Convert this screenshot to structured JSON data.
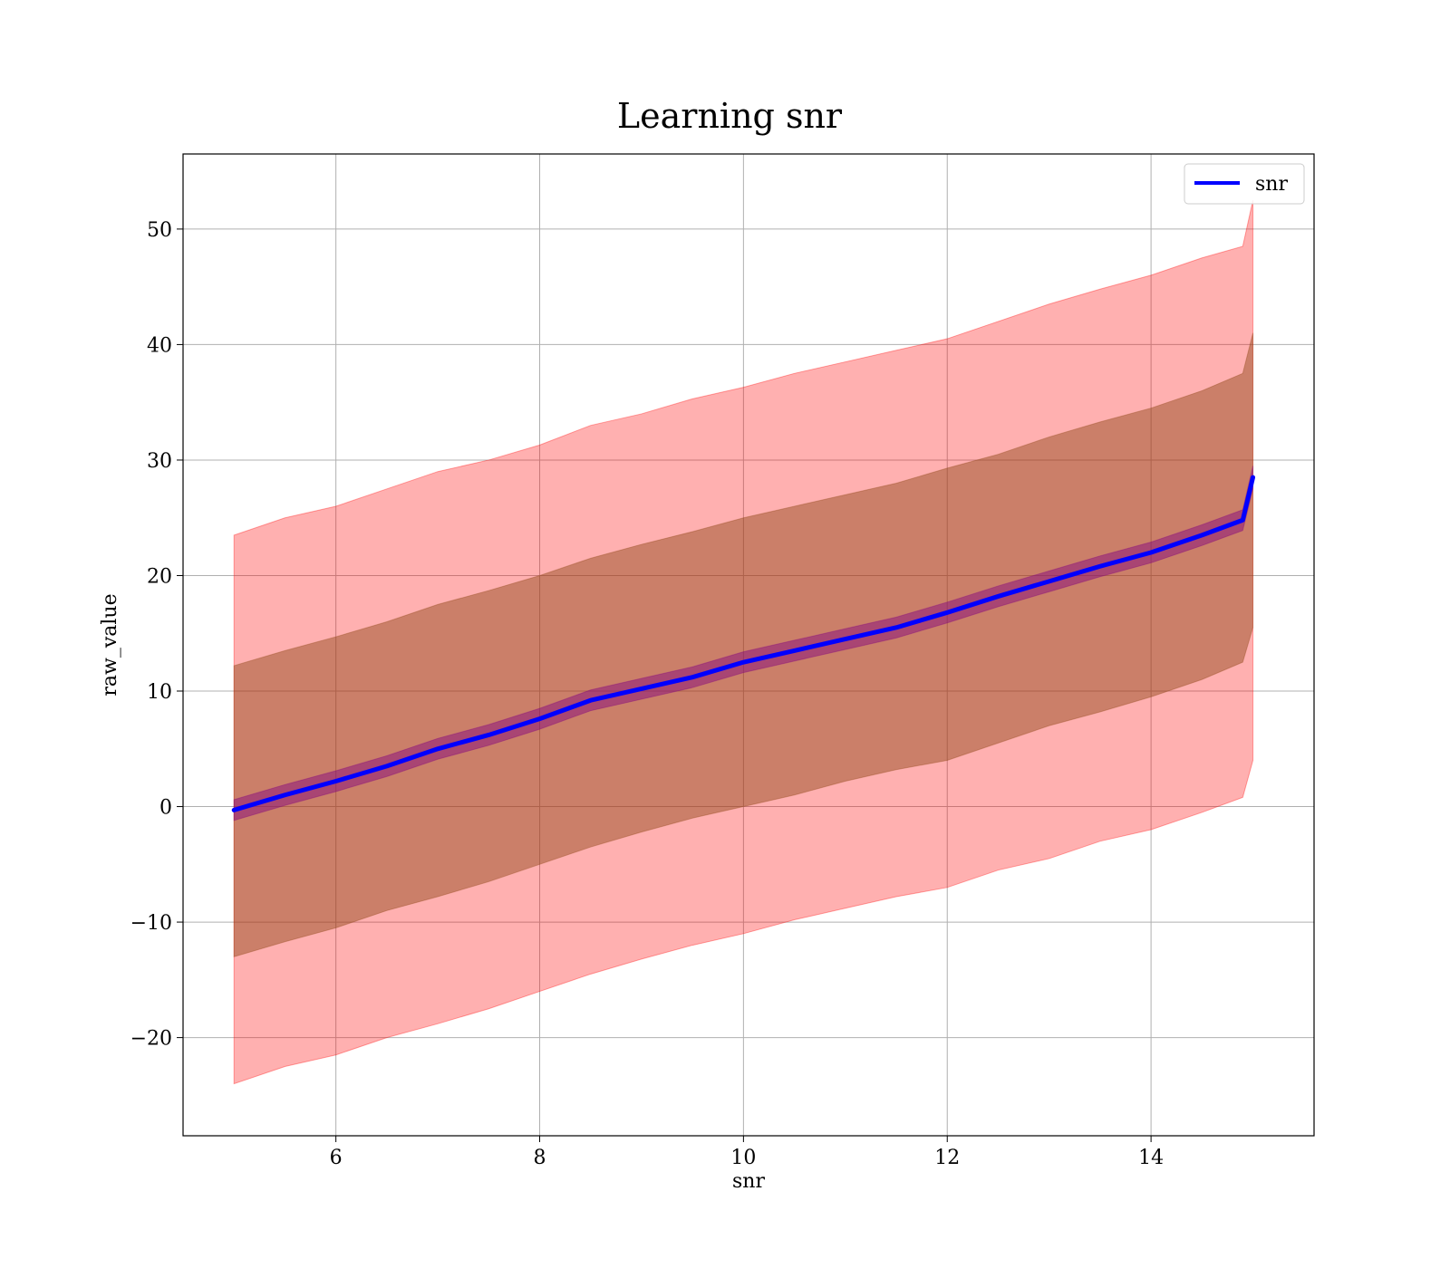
{
  "chart_data": {
    "type": "line",
    "title": "Learning snr",
    "xlabel": "snr",
    "ylabel": "raw_value",
    "xlim": [
      4.5,
      15.6
    ],
    "ylim": [
      -28.5,
      56.5
    ],
    "xticks": [
      6,
      8,
      10,
      12,
      14
    ],
    "yticks": [
      -20,
      -10,
      0,
      10,
      20,
      30,
      40,
      50
    ],
    "grid": true,
    "legend": {
      "position": "top-right",
      "entries": [
        "snr"
      ]
    },
    "colors": {
      "line": "#0000ff",
      "outer_band": "#ff0000",
      "inner_band": "#8b4513",
      "mean_band": "#800080",
      "grid": "#b0b0b0"
    },
    "series": [
      {
        "name": "snr",
        "x": [
          5.0,
          5.5,
          6.0,
          6.5,
          7.0,
          7.5,
          8.0,
          8.5,
          9.0,
          9.5,
          10.0,
          10.5,
          11.0,
          11.5,
          12.0,
          12.5,
          13.0,
          13.5,
          14.0,
          14.5,
          14.9,
          15.0
        ],
        "y": [
          -0.3,
          1.0,
          2.2,
          3.5,
          5.0,
          6.2,
          7.6,
          9.2,
          10.2,
          11.2,
          12.5,
          13.5,
          14.5,
          15.5,
          16.8,
          18.2,
          19.5,
          20.8,
          22.0,
          23.5,
          24.8,
          28.5
        ]
      }
    ],
    "bands": [
      {
        "level": "outer",
        "x": [
          5.0,
          5.5,
          6.0,
          6.5,
          7.0,
          7.5,
          8.0,
          8.5,
          9.0,
          9.5,
          10.0,
          10.5,
          11.0,
          11.5,
          12.0,
          12.5,
          13.0,
          13.5,
          14.0,
          14.5,
          14.9,
          15.0
        ],
        "upper": [
          23.5,
          25.0,
          26.0,
          27.5,
          29.0,
          30.0,
          31.3,
          33.0,
          34.0,
          35.3,
          36.3,
          37.5,
          38.5,
          39.5,
          40.5,
          42.0,
          43.5,
          44.8,
          46.0,
          47.5,
          48.5,
          52.5
        ],
        "lower": [
          -24.0,
          -22.5,
          -21.5,
          -20.0,
          -18.8,
          -17.5,
          -16.0,
          -14.5,
          -13.2,
          -12.0,
          -11.0,
          -9.8,
          -8.8,
          -7.8,
          -7.0,
          -5.5,
          -4.5,
          -3.0,
          -2.0,
          -0.5,
          0.8,
          4.0
        ]
      },
      {
        "level": "inner",
        "x": [
          5.0,
          5.5,
          6.0,
          6.5,
          7.0,
          7.5,
          8.0,
          8.5,
          9.0,
          9.5,
          10.0,
          10.5,
          11.0,
          11.5,
          12.0,
          12.5,
          13.0,
          13.5,
          14.0,
          14.5,
          14.9,
          15.0
        ],
        "upper": [
          12.2,
          13.5,
          14.7,
          16.0,
          17.5,
          18.7,
          20.0,
          21.5,
          22.7,
          23.8,
          25.0,
          26.0,
          27.0,
          28.0,
          29.3,
          30.5,
          32.0,
          33.3,
          34.5,
          36.0,
          37.5,
          41.0
        ],
        "lower": [
          -13.0,
          -11.7,
          -10.5,
          -9.0,
          -7.8,
          -6.5,
          -5.0,
          -3.5,
          -2.2,
          -1.0,
          0.0,
          1.0,
          2.2,
          3.2,
          4.0,
          5.5,
          7.0,
          8.2,
          9.5,
          11.0,
          12.5,
          15.5
        ]
      },
      {
        "level": "mean",
        "x": [
          5.0,
          5.5,
          6.0,
          6.5,
          7.0,
          7.5,
          8.0,
          8.5,
          9.0,
          9.5,
          10.0,
          10.5,
          11.0,
          11.5,
          12.0,
          12.5,
          13.0,
          13.5,
          14.0,
          14.5,
          14.9,
          15.0
        ],
        "upper": [
          0.6,
          1.9,
          3.1,
          4.4,
          5.9,
          7.1,
          8.5,
          10.1,
          11.1,
          12.1,
          13.4,
          14.4,
          15.4,
          16.4,
          17.7,
          19.1,
          20.4,
          21.7,
          22.9,
          24.4,
          25.7,
          29.5
        ],
        "lower": [
          -1.2,
          0.1,
          1.3,
          2.6,
          4.1,
          5.3,
          6.7,
          8.3,
          9.3,
          10.3,
          11.6,
          12.6,
          13.6,
          14.6,
          15.9,
          17.3,
          18.6,
          19.9,
          21.1,
          22.6,
          23.9,
          27.5
        ]
      }
    ]
  }
}
